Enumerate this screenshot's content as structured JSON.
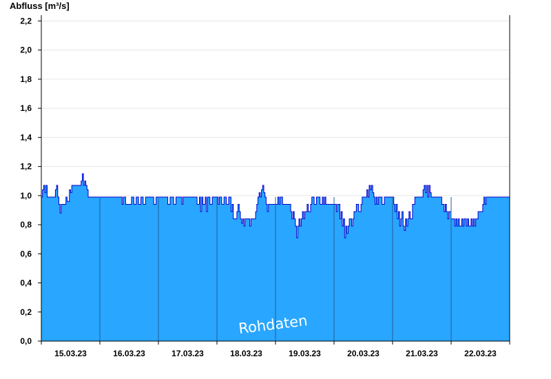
{
  "chart_data": {
    "type": "area",
    "ylabel": "Abfluss [m³/s]",
    "watermark": "Rohdaten",
    "ylim": [
      0,
      2.24
    ],
    "xlim": [
      "15.03.23 00:00",
      "22.03.23 23:59"
    ],
    "y_ticks": [
      "0,0",
      "0,2",
      "0,4",
      "0,6",
      "0,8",
      "1,0",
      "1,2",
      "1,4",
      "1,6",
      "1,8",
      "2,0",
      "2,2"
    ],
    "y_tick_values": [
      0,
      0.2,
      0.4,
      0.6,
      0.8,
      1.0,
      1.2,
      1.4,
      1.6,
      1.8,
      2.0,
      2.2
    ],
    "x_ticks": [
      "15.03.23",
      "16.03.23",
      "17.03.23",
      "18.03.23",
      "19.03.23",
      "20.03.23",
      "21.03.23",
      "22.03.23"
    ],
    "grid": true,
    "colors": {
      "fill": "#29a6ff",
      "line": "#0000cc",
      "grid": "#e6e6e6",
      "axis": "#000000",
      "daydivider": "#1f5f99"
    },
    "series": [
      {
        "x_unit": "days since 15.03.23 00:00",
        "points": [
          [
            0.0,
            0.99
          ],
          [
            0.02,
            1.04
          ],
          [
            0.04,
            1.07
          ],
          [
            0.06,
            1.02
          ],
          [
            0.08,
            1.07
          ],
          [
            0.1,
            0.99
          ],
          [
            0.2,
            0.99
          ],
          [
            0.24,
            1.04
          ],
          [
            0.26,
            1.07
          ],
          [
            0.28,
            0.99
          ],
          [
            0.3,
            0.94
          ],
          [
            0.32,
            0.88
          ],
          [
            0.34,
            0.94
          ],
          [
            0.4,
            0.94
          ],
          [
            0.42,
            0.99
          ],
          [
            0.44,
            0.96
          ],
          [
            0.48,
            1.04
          ],
          [
            0.5,
            1.02
          ],
          [
            0.52,
            1.07
          ],
          [
            0.66,
            1.07
          ],
          [
            0.68,
            1.1
          ],
          [
            0.7,
            1.15
          ],
          [
            0.72,
            1.07
          ],
          [
            0.74,
            1.1
          ],
          [
            0.76,
            1.07
          ],
          [
            0.78,
            1.04
          ],
          [
            0.8,
            0.99
          ],
          [
            1.0,
            0.99
          ],
          [
            1.1,
            0.99
          ],
          [
            1.2,
            0.99
          ],
          [
            1.36,
            0.99
          ],
          [
            1.38,
            0.94
          ],
          [
            1.4,
            0.99
          ],
          [
            1.44,
            0.94
          ],
          [
            1.52,
            0.94
          ],
          [
            1.54,
            0.99
          ],
          [
            1.58,
            0.94
          ],
          [
            1.62,
            0.99
          ],
          [
            1.66,
            0.94
          ],
          [
            1.7,
            0.99
          ],
          [
            1.74,
            0.94
          ],
          [
            1.78,
            0.99
          ],
          [
            1.9,
            0.99
          ],
          [
            1.92,
            0.94
          ],
          [
            1.96,
            0.99
          ],
          [
            2.0,
            0.99
          ],
          [
            2.1,
            0.99
          ],
          [
            2.16,
            0.94
          ],
          [
            2.2,
            0.99
          ],
          [
            2.26,
            0.94
          ],
          [
            2.3,
            0.99
          ],
          [
            2.4,
            0.94
          ],
          [
            2.42,
            0.99
          ],
          [
            2.5,
            0.99
          ],
          [
            2.64,
            0.99
          ],
          [
            2.66,
            0.94
          ],
          [
            2.7,
            0.99
          ],
          [
            2.72,
            0.89
          ],
          [
            2.74,
            0.99
          ],
          [
            2.76,
            0.94
          ],
          [
            2.8,
            0.99
          ],
          [
            2.82,
            0.89
          ],
          [
            2.84,
            0.99
          ],
          [
            2.88,
            0.94
          ],
          [
            2.92,
            0.99
          ],
          [
            3.0,
            0.99
          ],
          [
            3.02,
            0.94
          ],
          [
            3.04,
            0.99
          ],
          [
            3.08,
            0.94
          ],
          [
            3.12,
            0.99
          ],
          [
            3.16,
            0.94
          ],
          [
            3.2,
            0.99
          ],
          [
            3.24,
            0.89
          ],
          [
            3.26,
            0.94
          ],
          [
            3.28,
            0.84
          ],
          [
            3.32,
            0.84
          ],
          [
            3.34,
            0.89
          ],
          [
            3.36,
            0.94
          ],
          [
            3.38,
            0.89
          ],
          [
            3.4,
            0.84
          ],
          [
            3.42,
            0.81
          ],
          [
            3.44,
            0.84
          ],
          [
            3.46,
            0.79
          ],
          [
            3.48,
            0.84
          ],
          [
            3.52,
            0.84
          ],
          [
            3.56,
            0.79
          ],
          [
            3.58,
            0.84
          ],
          [
            3.6,
            0.84
          ],
          [
            3.64,
            0.84
          ],
          [
            3.66,
            0.89
          ],
          [
            3.68,
            0.94
          ],
          [
            3.7,
            0.99
          ],
          [
            3.72,
            1.02
          ],
          [
            3.74,
            0.99
          ],
          [
            3.76,
            1.04
          ],
          [
            3.78,
            1.07
          ],
          [
            3.8,
            1.02
          ],
          [
            3.82,
            0.99
          ],
          [
            3.84,
            0.94
          ],
          [
            3.86,
            0.89
          ],
          [
            3.88,
            0.94
          ],
          [
            3.9,
            0.94
          ],
          [
            4.0,
            0.94
          ],
          [
            4.02,
            0.94
          ],
          [
            4.04,
            0.99
          ],
          [
            4.06,
            0.94
          ],
          [
            4.08,
            0.99
          ],
          [
            4.12,
            0.94
          ],
          [
            4.2,
            0.94
          ],
          [
            4.26,
            0.89
          ],
          [
            4.28,
            0.84
          ],
          [
            4.3,
            0.89
          ],
          [
            4.32,
            0.84
          ],
          [
            4.34,
            0.79
          ],
          [
            4.36,
            0.71
          ],
          [
            4.38,
            0.79
          ],
          [
            4.4,
            0.84
          ],
          [
            4.42,
            0.79
          ],
          [
            4.44,
            0.84
          ],
          [
            4.46,
            0.89
          ],
          [
            4.48,
            0.84
          ],
          [
            4.5,
            0.89
          ],
          [
            4.54,
            0.94
          ],
          [
            4.56,
            0.89
          ],
          [
            4.6,
            0.94
          ],
          [
            4.62,
            0.99
          ],
          [
            4.66,
            0.94
          ],
          [
            4.7,
            0.99
          ],
          [
            4.74,
            0.99
          ],
          [
            4.76,
            0.94
          ],
          [
            4.8,
            0.99
          ],
          [
            4.82,
            0.94
          ],
          [
            4.84,
            0.99
          ],
          [
            4.86,
            0.94
          ],
          [
            5.0,
            0.94
          ],
          [
            5.04,
            0.89
          ],
          [
            5.06,
            0.94
          ],
          [
            5.1,
            0.84
          ],
          [
            5.12,
            0.89
          ],
          [
            5.14,
            0.79
          ],
          [
            5.16,
            0.84
          ],
          [
            5.18,
            0.71
          ],
          [
            5.2,
            0.79
          ],
          [
            5.22,
            0.74
          ],
          [
            5.24,
            0.79
          ],
          [
            5.26,
            0.84
          ],
          [
            5.3,
            0.79
          ],
          [
            5.32,
            0.84
          ],
          [
            5.34,
            0.89
          ],
          [
            5.38,
            0.94
          ],
          [
            5.42,
            0.89
          ],
          [
            5.46,
            0.94
          ],
          [
            5.48,
            0.99
          ],
          [
            5.54,
            0.99
          ],
          [
            5.56,
            1.04
          ],
          [
            5.58,
            0.99
          ],
          [
            5.6,
            1.07
          ],
          [
            5.62,
            1.04
          ],
          [
            5.64,
            1.07
          ],
          [
            5.66,
            1.02
          ],
          [
            5.68,
            0.99
          ],
          [
            5.7,
            0.94
          ],
          [
            5.72,
            0.99
          ],
          [
            5.74,
            0.94
          ],
          [
            5.76,
            0.99
          ],
          [
            5.8,
            0.99
          ],
          [
            5.82,
            0.94
          ],
          [
            5.86,
            0.99
          ],
          [
            6.0,
            0.99
          ],
          [
            6.02,
            0.94
          ],
          [
            6.04,
            0.89
          ],
          [
            6.06,
            0.94
          ],
          [
            6.08,
            0.84
          ],
          [
            6.1,
            0.89
          ],
          [
            6.12,
            0.79
          ],
          [
            6.14,
            0.84
          ],
          [
            6.16,
            0.89
          ],
          [
            6.18,
            0.79
          ],
          [
            6.2,
            0.76
          ],
          [
            6.22,
            0.84
          ],
          [
            6.24,
            0.79
          ],
          [
            6.26,
            0.84
          ],
          [
            6.28,
            0.89
          ],
          [
            6.3,
            0.84
          ],
          [
            6.34,
            0.94
          ],
          [
            6.38,
            0.99
          ],
          [
            6.5,
            0.99
          ],
          [
            6.52,
            1.04
          ],
          [
            6.54,
            1.07
          ],
          [
            6.56,
            1.02
          ],
          [
            6.58,
            1.07
          ],
          [
            6.6,
            0.99
          ],
          [
            6.62,
            1.07
          ],
          [
            6.64,
            1.02
          ],
          [
            6.66,
            0.99
          ],
          [
            6.8,
            0.99
          ],
          [
            6.84,
            0.94
          ],
          [
            6.88,
            0.89
          ],
          [
            6.9,
            0.94
          ],
          [
            6.92,
            0.89
          ],
          [
            6.94,
            0.84
          ],
          [
            6.96,
            0.89
          ],
          [
            7.0,
            0.84
          ],
          [
            7.04,
            0.84
          ],
          [
            7.06,
            0.79
          ],
          [
            7.08,
            0.84
          ],
          [
            7.1,
            0.79
          ],
          [
            7.12,
            0.84
          ],
          [
            7.14,
            0.79
          ],
          [
            7.18,
            0.84
          ],
          [
            7.2,
            0.79
          ],
          [
            7.22,
            0.84
          ],
          [
            7.26,
            0.79
          ],
          [
            7.28,
            0.84
          ],
          [
            7.3,
            0.79
          ],
          [
            7.34,
            0.84
          ],
          [
            7.36,
            0.79
          ],
          [
            7.38,
            0.84
          ],
          [
            7.4,
            0.79
          ],
          [
            7.42,
            0.84
          ],
          [
            7.44,
            0.84
          ],
          [
            7.46,
            0.89
          ],
          [
            7.48,
            0.89
          ],
          [
            7.5,
            0.89
          ],
          [
            7.54,
            0.94
          ],
          [
            7.56,
            0.99
          ],
          [
            7.58,
            0.94
          ],
          [
            7.6,
            0.99
          ],
          [
            8.0,
            0.99
          ]
        ]
      }
    ]
  }
}
